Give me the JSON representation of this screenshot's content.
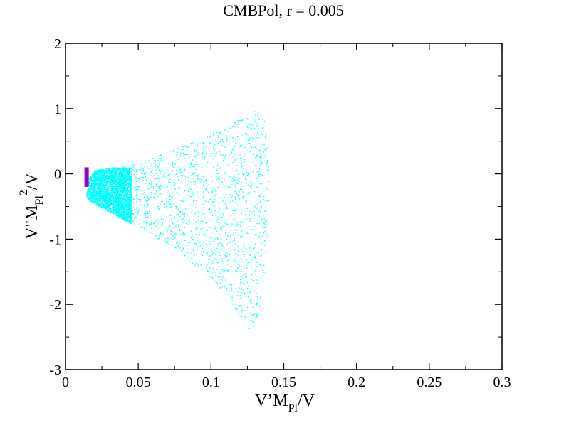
{
  "chart_data": {
    "type": "scatter",
    "title": "CMBPol, r = 0.005",
    "xlabel": {
      "main": "V’M",
      "sub": "Pl",
      "tail": "/V"
    },
    "ylabel": {
      "main": "V\"M",
      "sub": "Pl",
      "sup": "2",
      "tail": "/V"
    },
    "xlim": [
      0,
      0.3
    ],
    "ylim": [
      -3,
      2
    ],
    "xticks": [
      0,
      0.05,
      0.1,
      0.15,
      0.2,
      0.25,
      0.3
    ],
    "xtick_labels": [
      "0",
      "0.05",
      "0.1",
      "0.15",
      "0.2",
      "0.25",
      "0.3"
    ],
    "yticks": [
      -3,
      -2,
      -1,
      0,
      1,
      2
    ],
    "ytick_labels": [
      "-3",
      "-2",
      "-1",
      "0",
      "1",
      "2"
    ],
    "grid": false,
    "series": [
      {
        "color": "#00ffff",
        "marker": "dot",
        "region_outline": [
          [
            0.014,
            -0.35
          ],
          [
            0.016,
            -0.05
          ],
          [
            0.02,
            0.06
          ],
          [
            0.03,
            0.1
          ],
          [
            0.04,
            0.14
          ],
          [
            0.05,
            0.2
          ],
          [
            0.06,
            0.26
          ],
          [
            0.07,
            0.34
          ],
          [
            0.08,
            0.42
          ],
          [
            0.09,
            0.52
          ],
          [
            0.1,
            0.62
          ],
          [
            0.11,
            0.74
          ],
          [
            0.12,
            0.86
          ],
          [
            0.127,
            0.98
          ],
          [
            0.133,
            0.94
          ],
          [
            0.137,
            0.8
          ],
          [
            0.139,
            0.3
          ],
          [
            0.14,
            -0.4
          ],
          [
            0.139,
            -1.0
          ],
          [
            0.137,
            -1.6
          ],
          [
            0.133,
            -2.1
          ],
          [
            0.128,
            -2.4
          ],
          [
            0.125,
            -2.38
          ],
          [
            0.118,
            -2.12
          ],
          [
            0.11,
            -1.86
          ],
          [
            0.1,
            -1.62
          ],
          [
            0.09,
            -1.42
          ],
          [
            0.08,
            -1.24
          ],
          [
            0.07,
            -1.08
          ],
          [
            0.06,
            -0.94
          ],
          [
            0.05,
            -0.82
          ],
          [
            0.04,
            -0.7
          ],
          [
            0.03,
            -0.58
          ],
          [
            0.02,
            -0.46
          ],
          [
            0.016,
            -0.4
          ]
        ],
        "dense_core": {
          "x": [
            0.014,
            0.045
          ],
          "y": [
            -0.75,
            0.1
          ]
        }
      },
      {
        "color": "#9400d3",
        "marker": "bar",
        "x": [
          0.0145
        ],
        "y_range": [
          -0.2,
          0.1
        ]
      }
    ]
  }
}
